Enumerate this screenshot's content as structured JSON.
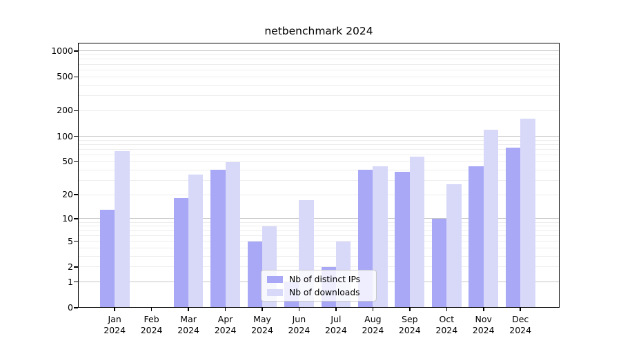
{
  "chart_data": {
    "type": "bar",
    "title": "netbenchmark 2024",
    "categories": [
      "Jan",
      "Feb",
      "Mar",
      "Apr",
      "May",
      "Jun",
      "Jul",
      "Aug",
      "Sep",
      "Oct",
      "Nov",
      "Dec"
    ],
    "category_year": "2024",
    "series": [
      {
        "name": "Nb of distinct IPs",
        "color": "#a8a8f7",
        "values": [
          13,
          0,
          18,
          40,
          5,
          1,
          2,
          40,
          38,
          10,
          44,
          74
        ]
      },
      {
        "name": "Nb of downloads",
        "color": "#d8d8f9",
        "values": [
          67,
          0,
          35,
          49,
          8,
          17,
          5,
          44,
          57,
          27,
          119,
          160
        ]
      }
    ],
    "yscale": "log1p",
    "ytick_labels": [
      "0",
      "1",
      "2",
      "5",
      "10",
      "20",
      "50",
      "100",
      "200",
      "500",
      "1000"
    ],
    "ytick_values": [
      0,
      1,
      2,
      5,
      10,
      20,
      50,
      100,
      200,
      500,
      1000
    ],
    "yminor_values": [
      2,
      3,
      4,
      5,
      6,
      7,
      8,
      9,
      20,
      30,
      40,
      50,
      60,
      70,
      80,
      90,
      200,
      300,
      400,
      500,
      600,
      700,
      800,
      900
    ],
    "ymajor_values": [
      1,
      10,
      100,
      1000
    ],
    "ylim": [
      0,
      1240
    ],
    "grid": true,
    "legend_position": "lower-center-inside",
    "colors": {
      "major_grid": "#c6c6c6",
      "minor_grid": "#ededed",
      "axis": "#000000",
      "background": "#ffffff",
      "text": "#000000"
    }
  },
  "legend": {
    "items": [
      {
        "label": "Nb of distinct IPs"
      },
      {
        "label": "Nb of downloads"
      }
    ]
  }
}
